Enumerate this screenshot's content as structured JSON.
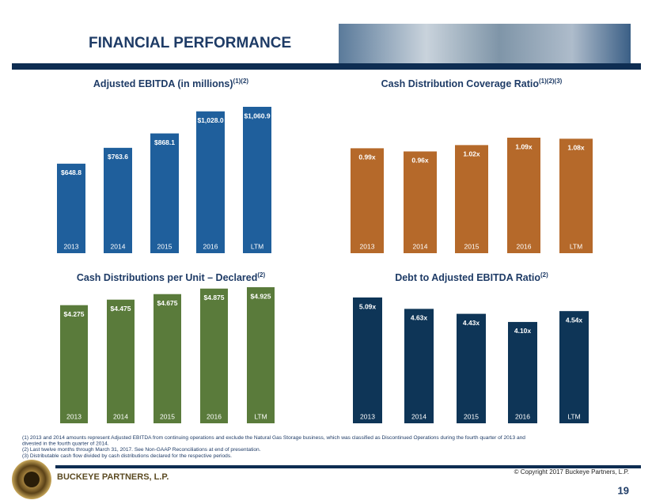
{
  "header": {
    "title": "FINANCIAL PERFORMANCE"
  },
  "chart_data": [
    {
      "type": "bar",
      "title": "Adjusted EBITDA (in millions)",
      "title_note": "(1)(2)",
      "categories": [
        "2013",
        "2014",
        "2015",
        "2016",
        "LTM"
      ],
      "values": [
        648.8,
        763.6,
        868.1,
        1028.0,
        1060.9
      ],
      "value_labels": [
        "$648.8",
        "$763.6",
        "$868.1",
        "$1,028.0",
        "$1,060.9"
      ],
      "color": "#1f5f9c"
    },
    {
      "type": "bar",
      "title": "Cash Distribution Coverage Ratio",
      "title_note": "(1)(2)(3)",
      "categories": [
        "2013",
        "2014",
        "2015",
        "2016",
        "LTM"
      ],
      "values": [
        0.99,
        0.96,
        1.02,
        1.09,
        1.08
      ],
      "value_labels": [
        "0.99x",
        "0.96x",
        "1.02x",
        "1.09x",
        "1.08x"
      ],
      "color": "#b5692a"
    },
    {
      "type": "bar",
      "title": "Cash Distributions per Unit – Declared",
      "title_note": "(2)",
      "categories": [
        "2013",
        "2014",
        "2015",
        "2016",
        "LTM"
      ],
      "values": [
        4.275,
        4.475,
        4.675,
        4.875,
        4.925
      ],
      "value_labels": [
        "$4.275",
        "$4.475",
        "$4.675",
        "$4.875",
        "$4.925"
      ],
      "color": "#5a7b3b"
    },
    {
      "type": "bar",
      "title": "Debt to Adjusted EBITDA Ratio",
      "title_note": "(2)",
      "categories": [
        "2013",
        "2014",
        "2015",
        "2016",
        "LTM"
      ],
      "values": [
        5.09,
        4.63,
        4.43,
        4.1,
        4.54
      ],
      "value_labels": [
        "5.09x",
        "4.63x",
        "4.43x",
        "4.10x",
        "4.54x"
      ],
      "color": "#0e3557"
    }
  ],
  "footnotes": [
    "(1)  2013 and 2014 amounts represent Adjusted EBITDA from continuing operations and exclude the Natural Gas Storage business, which was classified as Discontinued Operations during the fourth quarter of 2013 and",
    "       divested in the fourth quarter of 2014.",
    "(2)  Last twelve months through March 31, 2017. See Non-GAAP Reconciliations at end of presentation.",
    "(3)  Distributable cash flow divided by cash distributions declared for the respective periods."
  ],
  "footer": {
    "company": "BUCKEYE PARTNERS, L.P.",
    "copyright": "© Copyright 2017 Buckeye Partners, L.P.",
    "page": "19"
  }
}
